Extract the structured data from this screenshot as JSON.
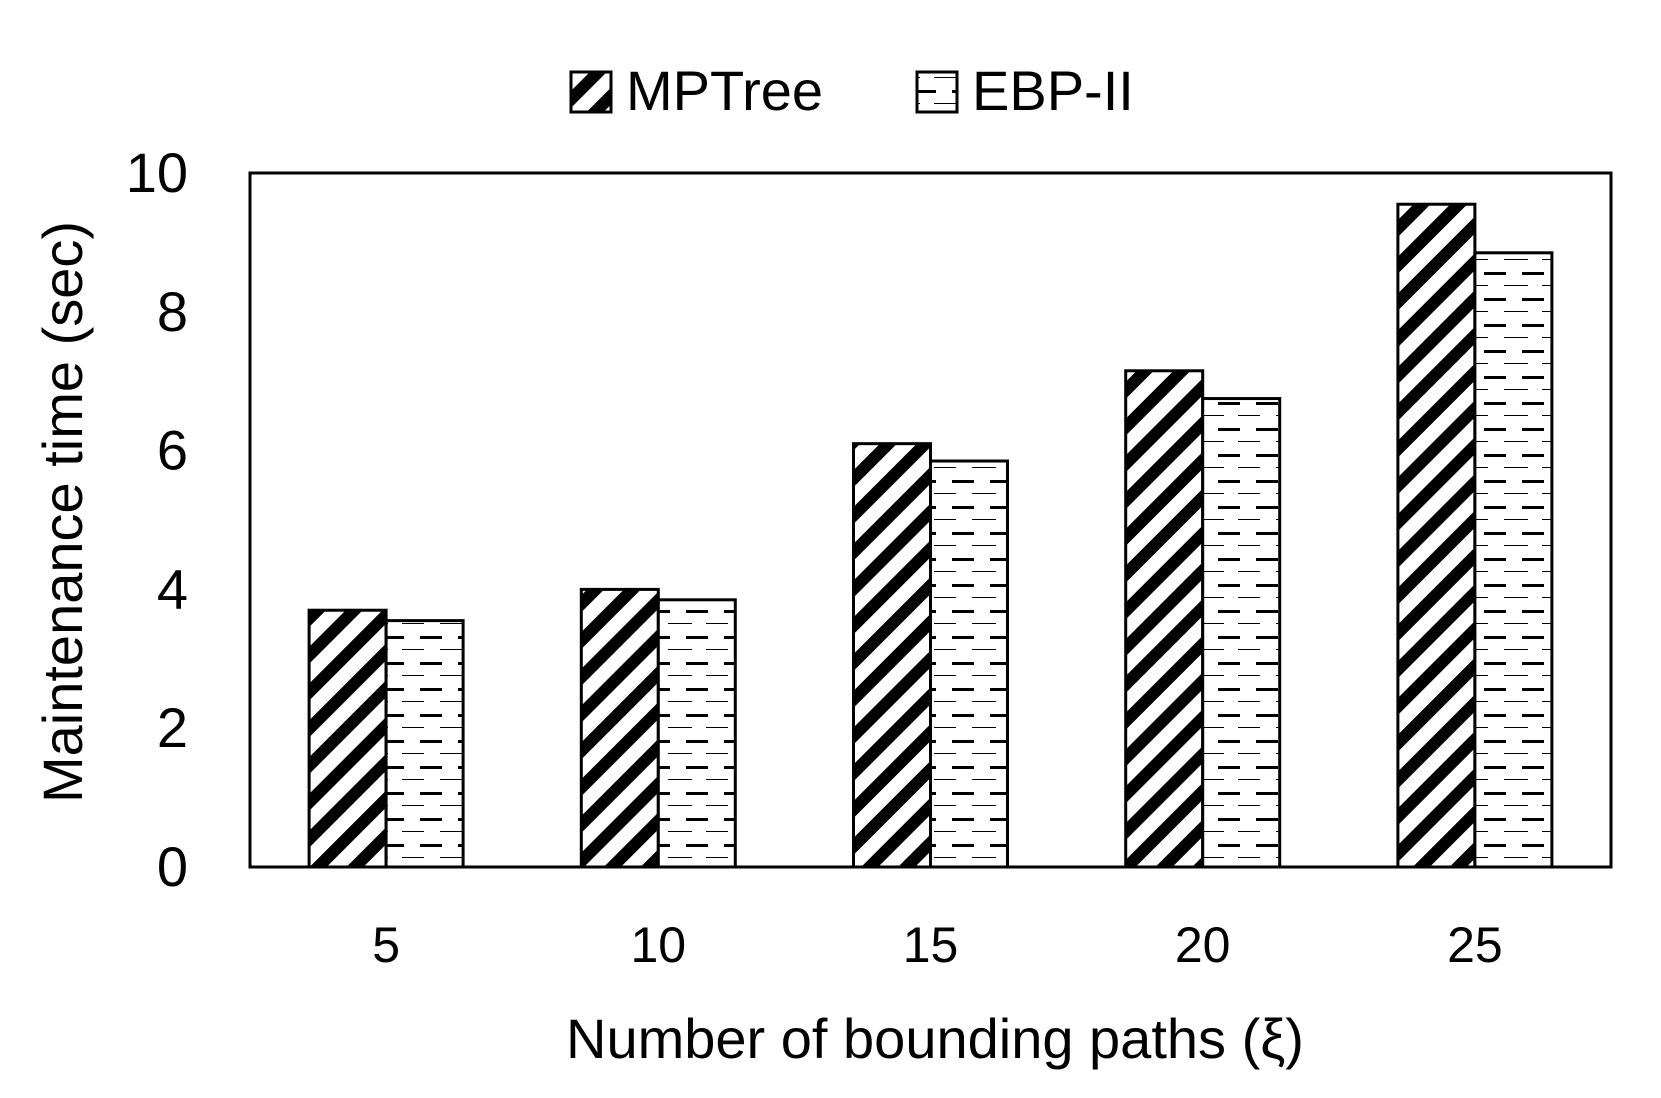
{
  "chart_data": {
    "type": "bar",
    "title": "",
    "xlabel": "Number of bounding paths (ξ)",
    "ylabel": "Maintenance time (sec)",
    "categories": [
      "5",
      "10",
      "15",
      "20",
      "25"
    ],
    "series": [
      {
        "name": "MPTree",
        "pattern": "diagonal-stripes",
        "values": [
          3.7,
          4.0,
          6.1,
          7.15,
          9.55
        ]
      },
      {
        "name": "EBP-II",
        "pattern": "dashed-horizontal",
        "values": [
          3.55,
          3.85,
          5.85,
          6.75,
          8.85
        ]
      }
    ],
    "ylim": [
      0,
      10
    ],
    "yticks": [
      0,
      2,
      4,
      6,
      8,
      10
    ],
    "grid": false,
    "legend_position": "top-center",
    "colors": {
      "ink": "#000000",
      "background": "#ffffff"
    }
  }
}
